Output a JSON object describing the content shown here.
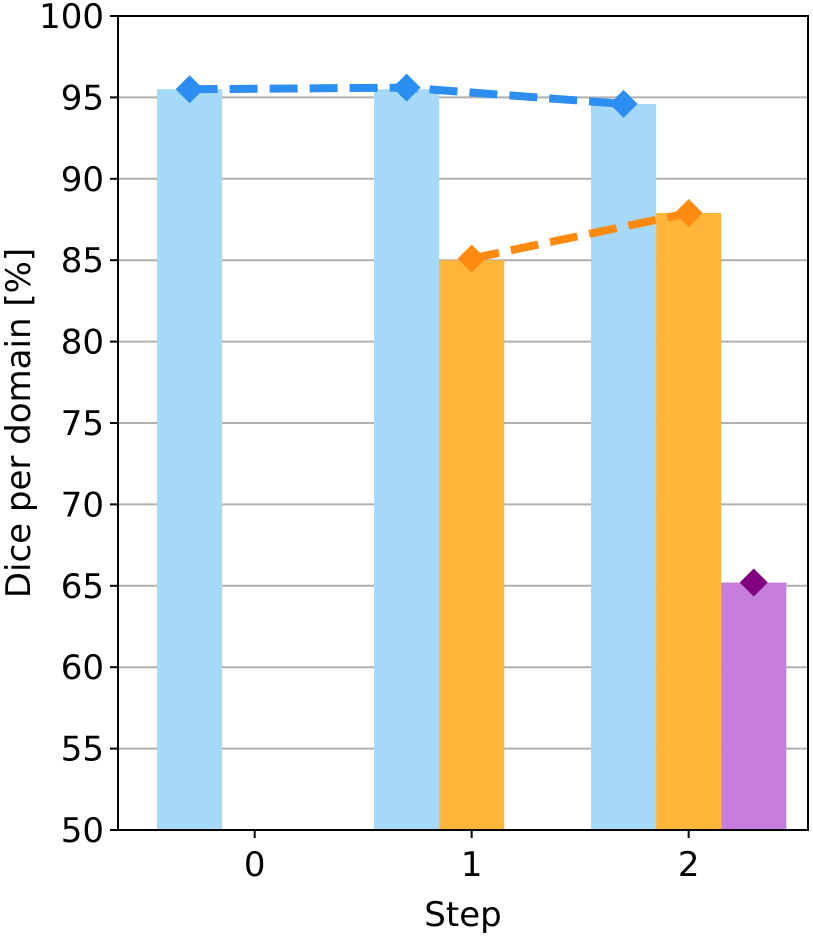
{
  "chart_data": {
    "type": "bar",
    "title": "",
    "xlabel": "Step",
    "ylabel": "Dice per domain [%]",
    "categories": [
      "0",
      "1",
      "2"
    ],
    "ylim": [
      50,
      100
    ],
    "yticks": [
      50,
      55,
      60,
      65,
      70,
      75,
      80,
      85,
      90,
      95,
      100
    ],
    "grid": true,
    "series": [
      {
        "color": "#a6d8f8",
        "marker_color": "#2b8ef0",
        "values": [
          95.5,
          95.5,
          94.6
        ],
        "markers": [
          95.5,
          95.6,
          94.6
        ],
        "line": true
      },
      {
        "color": "#ffb43a",
        "marker_color": "#ff8a10",
        "values": [
          null,
          85.0,
          87.9
        ],
        "markers": [
          null,
          85.1,
          87.9
        ],
        "line": true
      },
      {
        "color": "#c77ddc",
        "marker_color": "#800080",
        "values": [
          null,
          null,
          65.2
        ],
        "markers": [
          null,
          null,
          65.2
        ],
        "line": false
      }
    ]
  }
}
